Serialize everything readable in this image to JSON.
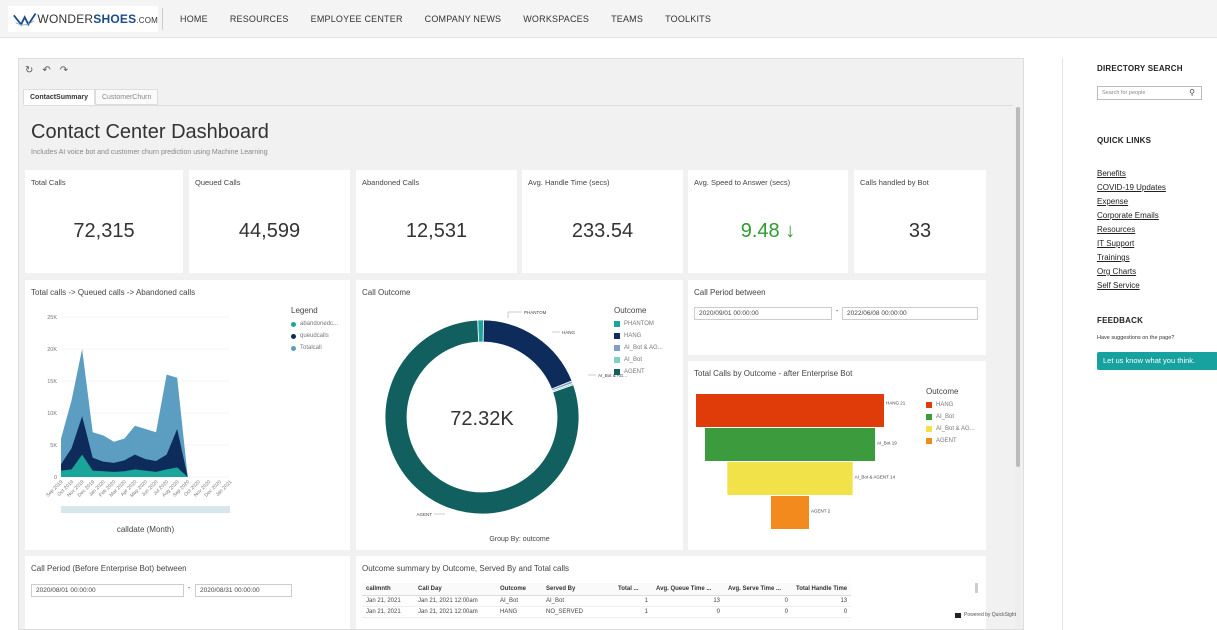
{
  "nav": {
    "logo_main": "WONDER",
    "logo_bold": "SHOES",
    "logo_suffix": ".COM",
    "items": [
      "HOME",
      "RESOURCES",
      "EMPLOYEE CENTER",
      "COMPANY NEWS",
      "WORKSPACES",
      "TEAMS",
      "TOOLKITS"
    ]
  },
  "toolbar": {
    "refresh": "↻",
    "undo": "↶",
    "redo": "↷"
  },
  "tabs": [
    "ContactSummary",
    "CustomerChurn"
  ],
  "dashboard": {
    "title": "Contact Center Dashboard",
    "subtitle": "Includes AI voice bot and customer churn prediction using Machine Learning"
  },
  "kpis": [
    {
      "label": "Total Calls",
      "value": "72,315"
    },
    {
      "label": "Queued Calls",
      "value": "44,599"
    },
    {
      "label": "Abandoned Calls",
      "value": "12,531"
    },
    {
      "label": "Avg. Handle Time (secs)",
      "value": "233.54"
    },
    {
      "label": "Avg. Speed to Answer (secs)",
      "value": "9.48 ↓"
    },
    {
      "label": "Calls handled by Bot",
      "value": "33"
    }
  ],
  "colors": {
    "totalcall": "#5b9ec2",
    "queued": "#0d2b5b",
    "abandoned": "#19a59a",
    "agent": "#11605f",
    "hang": "#0d2b5b",
    "phantom": "#1aa5a0",
    "aibot_agent": "#7f9fc4",
    "aibot": "#7fd0c0",
    "funnel_hang": "#e03c0a",
    "funnel_aibot": "#3c9b3c",
    "funnel_aibot_agent": "#f2e24a",
    "funnel_agent": "#f28a1e",
    "teal_button": "#17a2a0",
    "green_kpi": "#2e9b2e"
  },
  "area_chart": {
    "title": "Total calls -> Queued calls -> Abandoned calls",
    "legend_title": "Legend",
    "xlabel": "calldate (Month)"
  },
  "donut_chart": {
    "title": "Call Outcome",
    "center_value": "72.32K",
    "legend_title": "Outcome",
    "footer": "Group By: outcome"
  },
  "period_between": {
    "title": "Call Period between",
    "from": "2020/09/01 00:00:00",
    "sep": "-",
    "to": "2022/06/08 00:00:00"
  },
  "funnel_chart": {
    "title": "Total Calls by Outcome - after Enterprise Bot",
    "legend_title": "Outcome"
  },
  "period_before": {
    "title": "Call Period (Before Enterprise Bot) between",
    "from": "2020/08/01 00:00:00",
    "sep": "-",
    "to": "2020/08/31 00:00:00"
  },
  "summary_table": {
    "title": "Outcome summary by Outcome, Served By and Total calls",
    "columns": [
      "callmnth",
      "Call Day",
      "Outcome",
      "Served By",
      "Total ...",
      "Avg. Queue Time ...",
      "Avg. Serve Time ...",
      "Total Handle Time"
    ],
    "rows": [
      [
        "Jan 21, 2021",
        "Jan 21, 2021 12:00am",
        "AI_Bot",
        "AI_Bot",
        "1",
        "13",
        "0",
        "13"
      ],
      [
        "Jan 21, 2021",
        "Jan 21, 2021 12:00am",
        "HANG",
        "NO_SERVED",
        "1",
        "0",
        "0",
        "0"
      ]
    ],
    "powered_by": "Powered by QuickSight"
  },
  "sidebar": {
    "directory_title": "DIRECTORY SEARCH",
    "search_placeholder": "Search for people",
    "quick_links_title": "QUICK LINKS",
    "links": [
      "Benefits",
      "COVID-19 Updates",
      "Expense",
      "Corporate Emails",
      "Resources",
      "IT Support",
      "Trainings",
      "Org Charts",
      "Self Service"
    ],
    "feedback_title": "FEEDBACK",
    "feedback_text": "Have suggestions on the page?",
    "feedback_button": "Let us know what you think."
  },
  "chart_data": [
    {
      "type": "area",
      "title": "Total calls -> Queued calls -> Abandoned calls",
      "xlabel": "calldate (Month)",
      "ylabel": "",
      "ylim": [
        0,
        25000
      ],
      "yticks": [
        "0",
        "5K",
        "10K",
        "15K",
        "20K",
        "25K"
      ],
      "legend": "right",
      "categories": [
        "Sep 2019",
        "Oct 2019",
        "Nov 2019",
        "Dec 2019",
        "Jan 2020",
        "Feb 2020",
        "Mar 2020",
        "Apr 2020",
        "May 2020",
        "Jun 2020",
        "Jul 2020",
        "Aug 2020",
        "Sep 2020",
        "Oct 2020",
        "Nov 2020",
        "Dec 2020",
        "Jan 2021"
      ],
      "series": [
        {
          "name": "abandonedc...",
          "values": [
            1000,
            1200,
            3500,
            1000,
            900,
            800,
            900,
            1200,
            1000,
            800,
            1200,
            1500,
            0,
            0,
            0,
            0,
            0
          ]
        },
        {
          "name": "queudcalls",
          "values": [
            2000,
            4500,
            9500,
            3000,
            2400,
            2200,
            2600,
            3500,
            2800,
            2500,
            3500,
            7500,
            0,
            0,
            0,
            0,
            0
          ]
        },
        {
          "name": "Totalcall",
          "values": [
            6000,
            12000,
            20000,
            7000,
            6500,
            5500,
            6000,
            8000,
            7500,
            7000,
            16000,
            15500,
            0,
            0,
            0,
            0,
            0
          ]
        }
      ]
    },
    {
      "type": "pie",
      "title": "Call Outcome",
      "center_label": "72.32K",
      "legend": "right",
      "labels": [
        "PHANTOM",
        "HANG",
        "AI_Bot & AG...",
        "AI_Bot",
        "AGENT"
      ],
      "values": [
        700,
        13500,
        300,
        200,
        57600
      ]
    },
    {
      "type": "bar",
      "title": "Total Calls by Outcome - after Enterprise Bot",
      "legend": "right",
      "categories": [
        "HANG",
        "AI_Bot",
        "AI_Bot & AGENT",
        "AGENT"
      ],
      "data_labels": [
        "HANG 21",
        "AI_Bot 19",
        "AI_Bot & AGENT 14",
        "AGENT 2"
      ],
      "legend_labels": [
        "HANG",
        "AI_Bot",
        "AI_Bot & AG...",
        "AGENT"
      ],
      "values": [
        21,
        19,
        14,
        2
      ]
    }
  ]
}
